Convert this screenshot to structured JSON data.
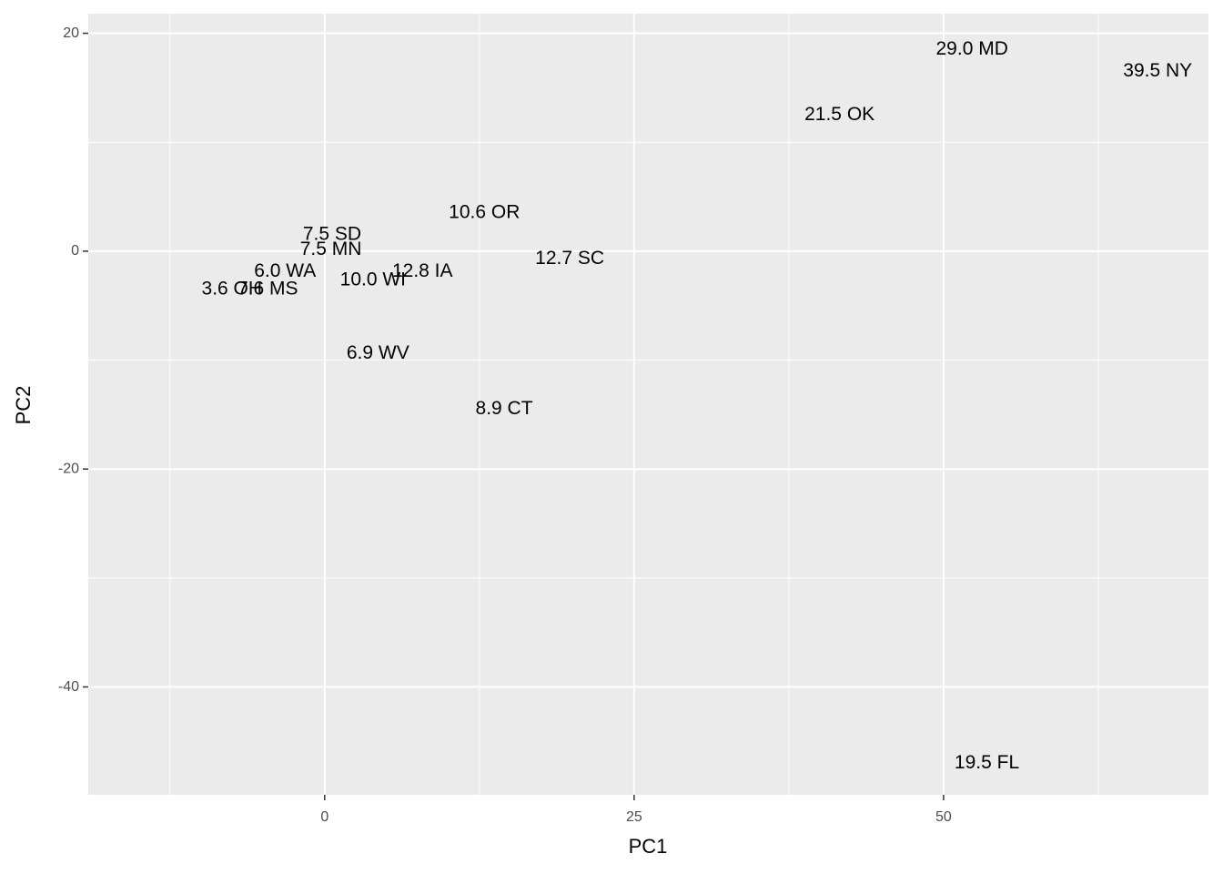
{
  "chart_data": {
    "type": "scatter",
    "x_label": "PC1",
    "y_label": "PC2",
    "xlim": [
      -19.1,
      71.4
    ],
    "ylim": [
      -49.9,
      21.8
    ],
    "xticks": [
      0,
      25,
      50
    ],
    "yticks": [
      -40,
      -20,
      0,
      20
    ],
    "grid": true,
    "x": [
      52.3,
      67.3,
      41.6,
      12.9,
      19.8,
      7.9,
      3.9,
      4.3,
      14.5,
      53.5,
      0.5,
      0.6,
      -3.2,
      -7.5,
      -4.6
    ],
    "values": [
      18.5,
      16.5,
      12.5,
      3.5,
      -0.7,
      -1.9,
      -2.7,
      -9.4,
      -14.5,
      -47.0,
      0.1,
      1.5,
      -1.9,
      -3.5,
      -3.5
    ],
    "point_labels": [
      "29.0 MD",
      "39.5 NY",
      "21.5 OK",
      "10.6 OR",
      "12.7 SC",
      "12.8 IA",
      "10.0 WI",
      "6.9 WV",
      "8.9 CT",
      "19.5 FL",
      "7.5 MN",
      "7.5 SD",
      "6.0 WA",
      "3.6 OH",
      "7.6 MS"
    ]
  }
}
